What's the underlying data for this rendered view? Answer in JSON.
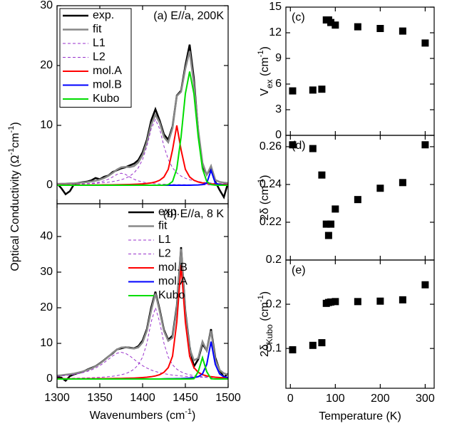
{
  "chart_data": [
    {
      "type": "line",
      "title": "(a) E//a, 200K",
      "legend": "upper left",
      "legend_frame": true,
      "ylabel": [
        {
          "text": "Optical Conductivity ("
        },
        {
          "text": "Ω"
        },
        {
          "text": "-1",
          "script": "super"
        },
        {
          "text": "cm"
        },
        {
          "text": "-1",
          "script": "super"
        },
        {
          "text": ")"
        }
      ],
      "xlim": [
        1300,
        1500
      ],
      "xticks": [
        1300,
        1350,
        1400,
        1450,
        1500
      ],
      "ylim": [
        -3.1,
        30
      ],
      "yticks": [
        0,
        10,
        20,
        30
      ],
      "x": [
        1300,
        1305,
        1310,
        1315,
        1320,
        1325,
        1330,
        1335,
        1340,
        1345,
        1350,
        1355,
        1360,
        1365,
        1370,
        1375,
        1380,
        1385,
        1390,
        1395,
        1400,
        1405,
        1410,
        1415,
        1420,
        1425,
        1430,
        1435,
        1440,
        1445,
        1450,
        1455,
        1460,
        1465,
        1470,
        1475,
        1480,
        1485,
        1490,
        1495,
        1500
      ],
      "series": [
        {
          "name": "exp.",
          "color": "#000000",
          "width": 2.5,
          "values": [
            0.3,
            -0.5,
            -1.5,
            -1.0,
            0.2,
            0.4,
            0.5,
            0.6,
            0.8,
            1.2,
            1.0,
            1.4,
            1.6,
            2.2,
            2.5,
            2.8,
            3.0,
            3.3,
            3.6,
            4.2,
            5.5,
            7.6,
            10.8,
            12.7,
            10.8,
            8.5,
            7.6,
            9.8,
            15.0,
            15.8,
            20.0,
            23.5,
            17.8,
            9.0,
            3.2,
            1.8,
            2.8,
            0.6,
            -0.8,
            -2.0,
            0.5
          ]
        },
        {
          "name": "fit",
          "color": "#888888",
          "width": 2.5,
          "values": [
            0.22,
            0.24,
            0.26,
            0.3,
            0.33,
            0.38,
            0.45,
            0.52,
            0.62,
            0.75,
            0.93,
            1.19,
            1.56,
            2.04,
            2.6,
            2.99,
            3.06,
            3.02,
            3.2,
            3.8,
            5.05,
            7.19,
            10.09,
            11.79,
            10.43,
            8.05,
            7.18,
            9.55,
            14.92,
            15.61,
            19.5,
            22.4,
            16.92,
            9.3,
            3.73,
            1.72,
            3.21,
            0.87,
            0.55,
            0.43,
            0.37
          ]
        },
        {
          "name": "L1",
          "color": "#9932cc",
          "width": 1,
          "dashed": true,
          "values": [
            0.12,
            0.13,
            0.14,
            0.16,
            0.17,
            0.19,
            0.22,
            0.24,
            0.27,
            0.31,
            0.36,
            0.42,
            0.5,
            0.6,
            0.73,
            0.91,
            1.16,
            1.52,
            2.06,
            2.91,
            4.3,
            6.5,
            9.4,
            11,
            9.4,
            6.5,
            4.3,
            2.91,
            2.06,
            1.52,
            1.16,
            0.91,
            0.73,
            0.6,
            0.5,
            0.42,
            0.36,
            0.31,
            0.27,
            0.24,
            0.22
          ]
        },
        {
          "name": "L2",
          "color": "#9932cc",
          "width": 1,
          "dashed": true,
          "values": [
            0.08,
            0.09,
            0.1,
            0.12,
            0.14,
            0.16,
            0.2,
            0.25,
            0.31,
            0.4,
            0.53,
            0.72,
            1.0,
            1.38,
            1.8,
            2,
            1.8,
            1.38,
            1.0,
            0.72,
            0.53,
            0.4,
            0.31,
            0.25,
            0.2,
            0.16,
            0.14,
            0.12,
            0.1,
            0.09,
            0.08,
            0.07,
            0.06,
            0.06,
            0.05,
            0.05,
            0.04,
            0.04,
            0.04,
            0.03,
            0.03
          ]
        },
        {
          "name": "mol.A",
          "color": "#ff0000",
          "width": 2,
          "values": [
            0.02,
            0.02,
            0.02,
            0.02,
            0.02,
            0.03,
            0.03,
            0.03,
            0.04,
            0.04,
            0.04,
            0.05,
            0.06,
            0.06,
            0.07,
            0.08,
            0.1,
            0.12,
            0.14,
            0.17,
            0.22,
            0.29,
            0.38,
            0.54,
            0.83,
            1.38,
            2.65,
            5.9,
            10,
            5.9,
            2.65,
            1.38,
            0.83,
            0.54,
            0.38,
            0.29,
            0.22,
            0.17,
            0.14,
            0.12,
            0.1
          ]
        },
        {
          "name": "mol.B",
          "color": "#0000ff",
          "width": 2,
          "values": [
            0,
            0,
            0,
            0,
            0,
            0,
            0,
            0,
            0,
            0,
            0,
            0,
            0,
            0,
            0,
            0,
            0,
            0,
            0,
            0,
            0,
            0,
            0,
            0,
            0,
            0,
            0,
            0,
            0,
            0,
            0,
            0,
            0.02,
            0.04,
            0.1,
            0.34,
            2.5,
            0.34,
            0.1,
            0.04,
            0.02
          ]
        },
        {
          "name": "Kubo",
          "color": "#00dd00",
          "width": 2,
          "values": [
            0,
            0,
            0,
            0,
            0,
            0,
            0,
            0,
            0,
            0,
            0,
            0,
            0,
            0,
            0,
            0,
            0,
            0,
            0,
            0,
            0,
            0,
            0,
            0,
            0,
            0.01,
            0.09,
            0.62,
            2.76,
            8.1,
            15.3,
            19,
            15.3,
            8.1,
            2.76,
            0.62,
            0.09,
            0.01,
            0,
            0,
            0
          ]
        }
      ]
    },
    {
      "type": "line",
      "title": "(b) E//a, 8 K",
      "legend": "upper center",
      "legend_frame": false,
      "xlabel": [
        {
          "text": "Wavenumbers (cm"
        },
        {
          "text": "-1",
          "script": "super"
        },
        {
          "text": ")"
        }
      ],
      "xlim": [
        1300,
        1500
      ],
      "xticks": [
        1300,
        1350,
        1400,
        1450,
        1500
      ],
      "ylim": [
        -2.4,
        49.2
      ],
      "yticks": [
        0,
        10,
        20,
        30,
        40
      ],
      "x": [
        1300,
        1305,
        1310,
        1315,
        1320,
        1325,
        1330,
        1335,
        1340,
        1345,
        1350,
        1355,
        1360,
        1365,
        1370,
        1375,
        1380,
        1385,
        1390,
        1395,
        1400,
        1405,
        1410,
        1415,
        1420,
        1425,
        1430,
        1435,
        1440,
        1445,
        1450,
        1455,
        1460,
        1465,
        1470,
        1475,
        1480,
        1485,
        1490,
        1495,
        1500
      ],
      "series": [
        {
          "name": "exp.",
          "color": "#000000",
          "width": 2.5,
          "values": [
            0.5,
            0.4,
            -0.5,
            0.8,
            1.3,
            1.7,
            2.0,
            2.6,
            3.1,
            3.6,
            4.4,
            5.3,
            6.3,
            7.2,
            8.3,
            8.6,
            8.9,
            8.8,
            8.6,
            9.2,
            10.8,
            14,
            20,
            24.5,
            19.5,
            13.8,
            11.0,
            12.2,
            20.5,
            37,
            19,
            9,
            3.5,
            5.5,
            9.8,
            8.0,
            14,
            6.0,
            2.5,
            0.5,
            1.5
          ]
        },
        {
          "name": "fit",
          "color": "#888888",
          "width": 2.5,
          "values": [
            0.94,
            1.05,
            1.19,
            1.36,
            1.55,
            1.8,
            2.1,
            2.47,
            2.95,
            3.55,
            4.3,
            5.21,
            6.26,
            7.36,
            8.29,
            8.84,
            8.91,
            8.69,
            8.53,
            8.89,
            10.29,
            13.56,
            19.17,
            24,
            19.0,
            13.44,
            10.7,
            11.59,
            19.83,
            36.5,
            18.44,
            8.51,
            5.22,
            5.88,
            10.5,
            7.98,
            13.5,
            5.36,
            2.53,
            1.58,
            1.22
          ]
        },
        {
          "name": "L1",
          "color": "#9932cc",
          "width": 1,
          "dashed": true,
          "values": [
            0.15,
            0.16,
            0.18,
            0.2,
            0.22,
            0.24,
            0.27,
            0.3,
            0.35,
            0.4,
            0.46,
            0.54,
            0.64,
            0.77,
            0.94,
            1.18,
            1.51,
            2.0,
            2.76,
            4,
            6.15,
            10,
            16,
            20,
            16,
            10,
            6.15,
            4,
            2.76,
            2.0,
            1.51,
            1.18,
            0.94,
            0.77,
            0.64,
            0.54,
            0.46,
            0.4,
            0.35,
            0.3,
            0.27
          ]
        },
        {
          "name": "L2",
          "color": "#9932cc",
          "width": 1,
          "dashed": true,
          "values": [
            0.75,
            0.85,
            0.97,
            1.11,
            1.28,
            1.5,
            1.77,
            2.1,
            2.53,
            3.07,
            3.75,
            4.57,
            5.51,
            6.47,
            7.21,
            7.5,
            7.21,
            6.47,
            5.51,
            4.57,
            3.75,
            3.07,
            2.53,
            2.1,
            1.77,
            1.5,
            1.28,
            1.11,
            0.97,
            0.85,
            0.75,
            0.67,
            0.6,
            0.54,
            0.49,
            0.44,
            0.4,
            0.37,
            0.34,
            0.31,
            0.29
          ]
        },
        {
          "name": "mol.B",
          "color": "#ff0000",
          "width": 2,
          "values": [
            0.04,
            0.04,
            0.04,
            0.05,
            0.05,
            0.06,
            0.06,
            0.07,
            0.07,
            0.08,
            0.09,
            0.1,
            0.11,
            0.12,
            0.14,
            0.16,
            0.19,
            0.22,
            0.26,
            0.32,
            0.39,
            0.49,
            0.64,
            0.86,
            1.23,
            1.88,
            3.2,
            6.4,
            16,
            32,
            16,
            6.4,
            3.2,
            1.88,
            1.23,
            0.86,
            0.64,
            0.49,
            0.39,
            0.32,
            0.26
          ]
        },
        {
          "name": "mol.A",
          "color": "#0000ff",
          "width": 2,
          "values": [
            0,
            0,
            0,
            0,
            0,
            0,
            0,
            0,
            0,
            0,
            0,
            0,
            0,
            0,
            0,
            0,
            0,
            0,
            0,
            0,
            0,
            0,
            0,
            0,
            0,
            0.06,
            0.07,
            0.08,
            0.1,
            0.12,
            0.18,
            0.26,
            0.4,
            0.65,
            1.45,
            4.1,
            10.5,
            4.1,
            1.45,
            0.65,
            0.4
          ]
        },
        {
          "name": "Kubo",
          "color": "#00dd00",
          "width": 2,
          "values": [
            0,
            0,
            0,
            0,
            0,
            0,
            0,
            0,
            0,
            0,
            0,
            0,
            0,
            0,
            0,
            0,
            0,
            0,
            0,
            0,
            0,
            0,
            0,
            0,
            0,
            0,
            0,
            0,
            0,
            0,
            0,
            0,
            0.08,
            2.04,
            6,
            2.04,
            0.08,
            0,
            0,
            0,
            0
          ]
        }
      ]
    },
    {
      "type": "scatter",
      "title": "(c)",
      "color": "#000000",
      "ylabel": [
        {
          "text": "V"
        },
        {
          "text": "ex",
          "script": "sub"
        },
        {
          "text": " (cm"
        },
        {
          "text": "-1",
          "script": "super"
        },
        {
          "text": ")"
        }
      ],
      "xlim": [
        -10,
        320
      ],
      "xticks": [
        0,
        100,
        200,
        300
      ],
      "ylim": [
        0,
        15
      ],
      "yticks": [
        0,
        3,
        6,
        9,
        12,
        15
      ],
      "x": [
        5,
        50,
        70,
        80,
        85,
        90,
        100,
        150,
        200,
        250,
        300
      ],
      "y": [
        5.2,
        5.3,
        5.4,
        13.5,
        13.5,
        13.2,
        12.9,
        12.7,
        12.5,
        12.2,
        10.8
      ]
    },
    {
      "type": "scatter",
      "title": "(d)",
      "color": "#000000",
      "ylabel": [
        {
          "text": "2δ (cm"
        },
        {
          "text": "-1",
          "script": "super"
        },
        {
          "text": ")"
        }
      ],
      "xlim": [
        -10,
        320
      ],
      "xticks": [
        0,
        100,
        200,
        300
      ],
      "ylim": [
        0.2,
        0.266
      ],
      "yticks": [
        0.2,
        0.22,
        0.24,
        0.26
      ],
      "x": [
        5,
        50,
        70,
        80,
        85,
        90,
        100,
        150,
        200,
        250,
        300
      ],
      "y": [
        0.261,
        0.259,
        0.245,
        0.219,
        0.213,
        0.219,
        0.227,
        0.232,
        0.238,
        0.241,
        0.261
      ]
    },
    {
      "type": "scatter",
      "title": "(e)",
      "color": "#000000",
      "ylabel": [
        {
          "text": "2δ"
        },
        {
          "text": "Kubo",
          "script": "sub"
        },
        {
          "text": " (cm"
        },
        {
          "text": "-1",
          "script": "super"
        },
        {
          "text": ")"
        }
      ],
      "xlabel": [
        {
          "text": "Temperature (K)"
        }
      ],
      "xlim": [
        -10,
        320
      ],
      "xticks": [
        0,
        100,
        200,
        300
      ],
      "ylim": [
        0.01,
        0.3
      ],
      "yticks": [
        0.1,
        0.2
      ],
      "x": [
        5,
        50,
        70,
        80,
        85,
        90,
        100,
        150,
        200,
        250,
        300
      ],
      "y": [
        0.097,
        0.107,
        0.113,
        0.202,
        0.204,
        0.205,
        0.206,
        0.206,
        0.207,
        0.21,
        0.244
      ]
    }
  ]
}
